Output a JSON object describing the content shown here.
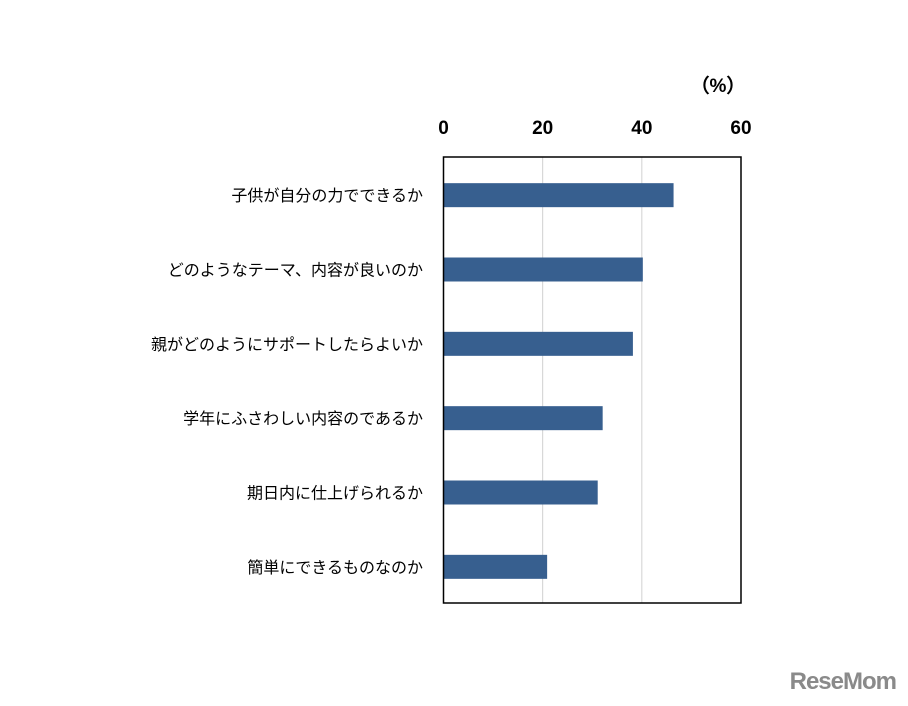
{
  "chart_data": {
    "type": "bar",
    "orientation": "horizontal",
    "unit_label": "（%）",
    "categories": [
      "子供が自分の力でできるか",
      "どのようなテーマ、内容が良いのか",
      "親がどのようにサポートしたらよいか",
      "学年にふさわしい内容のであるか",
      "期日内に仕上げられるか",
      "簡単にできるものなのか"
    ],
    "values": [
      46.4,
      40.2,
      38.2,
      32.1,
      31.1,
      20.9
    ],
    "xlim": [
      0,
      60
    ],
    "xticks": [
      "0",
      "20",
      "40",
      "60"
    ],
    "x_axis_position": "top",
    "grid": true,
    "legend": "none",
    "colors": {
      "bar": "#375F8F",
      "grid": "#D0D0D0",
      "frame": "#000000"
    }
  },
  "logo": {
    "text": "ReseMom"
  }
}
